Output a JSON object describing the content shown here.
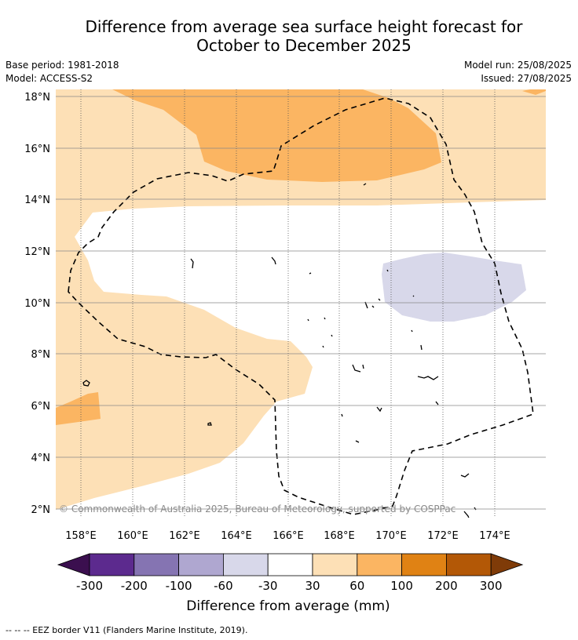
{
  "title_line1": "Difference from average sea surface height forecast for",
  "title_line2": "October to December 2025",
  "base_period": "Base period: 1981-2018",
  "model": "Model: ACCESS-S2",
  "model_run": "Model run: 25/08/2025",
  "issued": "Issued: 27/08/2025",
  "copyright": "© Commonwealth of Australia 2025, Bureau of Meteorology, supported by COSPPac",
  "lat_ticks": [
    "18°N",
    "16°N",
    "14°N",
    "12°N",
    "10°N",
    "8°N",
    "6°N",
    "4°N",
    "2°N"
  ],
  "lon_ticks": [
    "158°E",
    "160°E",
    "162°E",
    "164°E",
    "166°E",
    "168°E",
    "170°E",
    "172°E",
    "174°E"
  ],
  "colorbar": {
    "title": "Difference from average (mm)",
    "labels": [
      "-300",
      "-200",
      "-100",
      "-60",
      "-30",
      "30",
      "60",
      "100",
      "200",
      "300"
    ],
    "colors": [
      "#3b0f4f",
      "#5c2a8e",
      "#8574b2",
      "#afa7d0",
      "#d8d8ea",
      "#ffffff",
      "#fde0b6",
      "#fbb562",
      "#e08214",
      "#b35806",
      "#7f3b08"
    ]
  },
  "footnote": "--  --  -- EEZ border V11 (Flanders Marine Institute, 2019)."
}
